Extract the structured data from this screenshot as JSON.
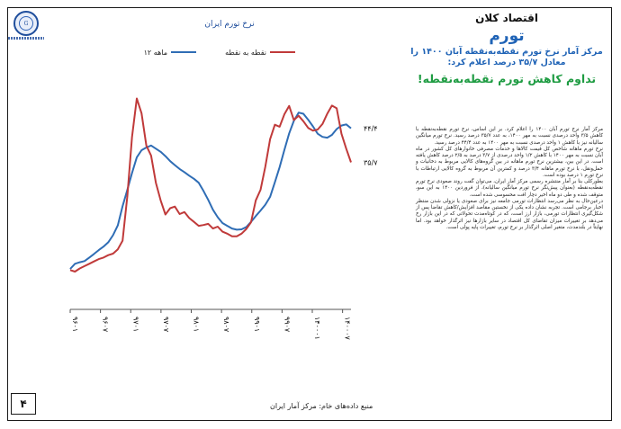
{
  "section_title": "اقتصاد کلان",
  "topic": "تورم",
  "subtitle": "مرکز آمار نرخ تورم نقطه‌به‌نقطه آبان ۱۴۰۰ را معادل ۳۵/۷ درصد اعلام کرد:",
  "headline": "تداوم کاهش تورم نقطه‌به‌نقطه!",
  "logo_text": "G",
  "page_number": "۴",
  "source": "منبع داده‌های خام: مرکز آمار ایران",
  "body_paragraphs": [
    "مرکز آمار نرخ تورم آبان ۱۴۰۰ را اعلام کرد. بر این اساس، نرخ تورم نقطه‌به‌نقطه با کاهش ۳/۵ واحد درصدی نسبت به مهر ۱۴۰۰، به عدد ۳۵/۷ درصد رسید. نرخ تورم میانگین سالیانه نیز با کاهش ۱ واحد درصدی نسبت به مهر ۱۴۰۰ به عدد ۴۴/۴ درصد رسید.",
    "نرخ تورم ماهانه شاخص کل قیمت کالاها و خدمات مصرفی خانوارهای کل کشور در ماه آبان نسبت به مهر ۱۴۰۰ با کاهش ۱/۲ واحد درصدی از ۳/۷ درصد به ۲/۵ درصد کاهش یافته است. در این بین، بیشترین نرخ تورم ماهانه در بین گروه‌های کالایی مربوط به دخانیات و حمل‌ونقل، با نرخ تورم ماهانه ۳/۴ درصد و کمترین آن مربوط به گروه کالایی ارتباطات با نرخ تورم ۱ درصد بوده است.",
    "بطورکلی بنا بر آمار منتشره رسمی مرکز آمار ایران، می‌توان گفت روند صعودی نرخ تورم نقطه‌به‌نقطه (بعنوان پیش‌نگر نرخ تورم میانگین سالیانه)، از فروردین ۱۴۰۰ به این سو، متوقف شده و طی دو ماه اخیر دچار افت محسوسی شده است.",
    "درعین‌حال به نظر می‌رسد انتظارات تورمی جامعه نیز برای صعودی یا نزولی شدن منتظر اخبار برجامی است. تجربه نشان داده یکی از نخستین مقاصد افزایش/کاهش تقاضا پس از شکل‌گیری انتظارات تورمی، بازار ارز است، که در کوتاه‌مدت تحولاتی که در این بازار رخ می‌دهد بر تغییرات میزان تقاضای کل اقتصاد در سایر بازارها نیز اثرگذار خواهد بود. اما نهایتاً در بلندمدت، متغیر اصلی اثرگذار بر نرخ تورم، تغییرات پایه پولی است."
  ],
  "chart_data": {
    "type": "line",
    "title": "نرخ تورم ایران",
    "x_tick_labels": [
      "۹۶۰۱",
      "۹۶۰۷",
      "۹۷۰۱",
      "۹۷۰۷",
      "۹۸۰۱",
      "۹۸۰۷",
      "۹۹۰۱",
      "۹۹۰۷",
      "۱۴۰۰۰۱",
      "۱۴۰۰۰۷"
    ],
    "ylim": [
      0,
      62
    ],
    "legend_position": "top",
    "series": [
      {
        "name": "۱۲ ماهه",
        "color": "#2f6db5",
        "values": [
          8.5,
          9.8,
          10.2,
          10.5,
          11.4,
          12.3,
          13.3,
          14.2,
          15.3,
          17.1,
          19.6,
          24.5,
          28.7,
          33,
          37,
          38.8,
          39.5,
          40,
          39.2,
          38.4,
          37.3,
          36,
          35,
          34,
          33.2,
          32.3,
          31.5,
          30.5,
          28.4,
          26.1,
          23.6,
          21.7,
          20.2,
          19.5,
          18.8,
          18.5,
          18.6,
          19.2,
          20.5,
          22,
          23.4,
          24.9,
          26.9,
          30.6,
          34.5,
          38.9,
          43.1,
          46.3,
          48.4,
          48.1,
          46.6,
          44.9,
          43,
          42.2,
          42,
          42.7,
          44.2,
          45.1,
          45.4,
          44.4
        ],
        "end_label": "۴۴/۴"
      },
      {
        "name": "نقطه به نقطه",
        "color": "#c03a3a",
        "values": [
          8.2,
          7.8,
          8.6,
          9.2,
          9.8,
          10.4,
          11,
          11.4,
          12,
          12.4,
          13.5,
          15.7,
          27.1,
          42.2,
          52,
          48.2,
          40,
          37.4,
          30.5,
          26,
          22.4,
          24,
          24.4,
          22.5,
          23,
          21.5,
          20.5,
          19.5,
          19.7,
          20,
          18.8,
          19.3,
          18,
          17.5,
          16.8,
          16.8,
          17.5,
          18.7,
          20.4,
          26,
          28.7,
          34.6,
          41.6,
          45.3,
          44.8,
          48,
          50.1,
          46.5,
          47.6,
          46.2,
          44.5,
          43.8,
          44.1,
          45.5,
          48.1,
          50.2,
          49.5,
          43,
          39.2,
          35.7
        ],
        "end_label": "۳۵/۷"
      }
    ]
  }
}
